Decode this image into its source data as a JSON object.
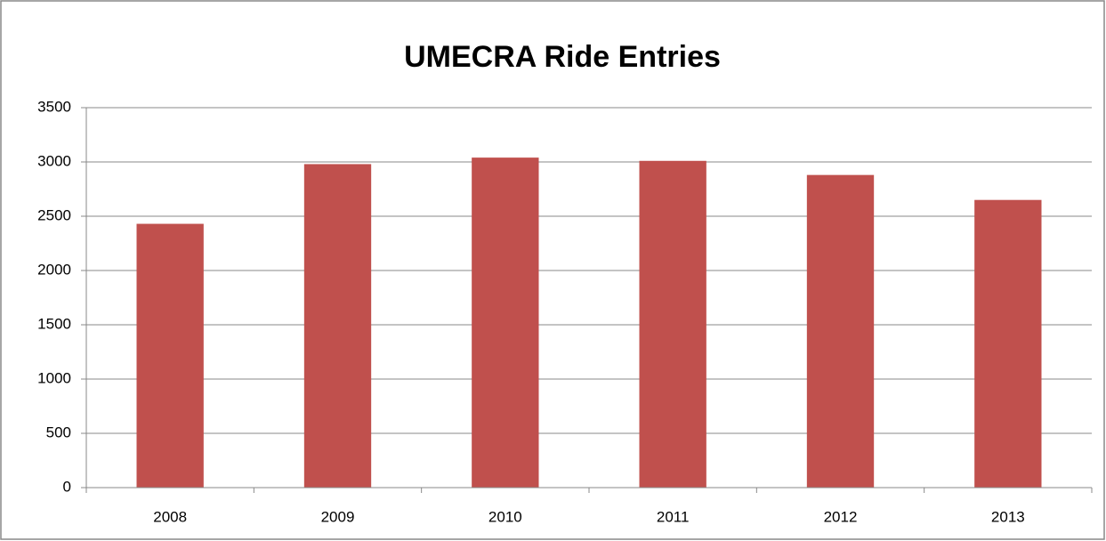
{
  "chart_data": {
    "type": "bar",
    "title": "UMECRA Ride Entries",
    "categories": [
      "2008",
      "2009",
      "2010",
      "2011",
      "2012",
      "2013"
    ],
    "values": [
      2430,
      2980,
      3040,
      3010,
      2880,
      2650
    ],
    "color": "#c0504d",
    "ylim": [
      0,
      3500
    ],
    "yticks": [
      0,
      500,
      1000,
      1500,
      2000,
      2500,
      3000,
      3500
    ],
    "grid": true
  }
}
